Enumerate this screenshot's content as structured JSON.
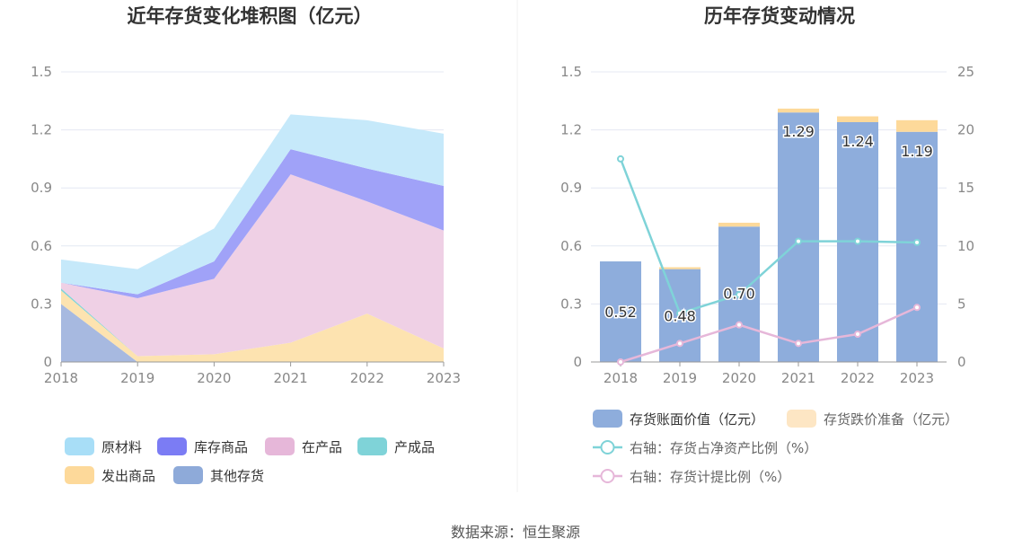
{
  "footer": {
    "source": "数据来源：恒生聚源"
  },
  "chart_data": [
    {
      "type": "area",
      "title": "近年存货变化堆积图（亿元）",
      "x": [
        "2018",
        "2019",
        "2020",
        "2021",
        "2022",
        "2023"
      ],
      "y_ticks": [
        "0",
        "0.3",
        "0.6",
        "0.9",
        "1.2",
        "1.5"
      ],
      "ylim": [
        0,
        1.5
      ],
      "stacked": true,
      "series": [
        {
          "name": "其他存货",
          "color": "#a7b9e0",
          "values": [
            0.3,
            0.0,
            0.0,
            0.0,
            0.0,
            0.0
          ]
        },
        {
          "name": "发出商品",
          "color": "#fde3b0",
          "values": [
            0.07,
            0.03,
            0.04,
            0.1,
            0.25,
            0.07
          ]
        },
        {
          "name": "产成品",
          "color": "#7fd3d8",
          "values": [
            0.01,
            0.0,
            0.0,
            0.0,
            0.0,
            0.0
          ]
        },
        {
          "name": "在产品",
          "color": "#efd0e5",
          "values": [
            0.03,
            0.3,
            0.39,
            0.87,
            0.58,
            0.61
          ]
        },
        {
          "name": "库存商品",
          "color": "#a0a2f8",
          "values": [
            0.0,
            0.02,
            0.09,
            0.13,
            0.17,
            0.23
          ]
        },
        {
          "name": "原材料",
          "color": "#c6e9fa",
          "values": [
            0.12,
            0.13,
            0.17,
            0.18,
            0.25,
            0.27
          ]
        }
      ],
      "legend": [
        {
          "name": "原材料",
          "color": "#a8def7"
        },
        {
          "name": "库存商品",
          "color": "#7b7cf4"
        },
        {
          "name": "在产品",
          "color": "#e6b7d9"
        },
        {
          "name": "产成品",
          "color": "#7fd3d8"
        },
        {
          "name": "发出商品",
          "color": "#fdd99a"
        },
        {
          "name": "其他存货",
          "color": "#8eaad9"
        }
      ],
      "legend_position": "bottom"
    },
    {
      "type": "bar",
      "title": "历年存货变动情况",
      "categories": [
        "2018",
        "2019",
        "2020",
        "2021",
        "2022",
        "2023"
      ],
      "y_ticks_left": [
        "0",
        "0.3",
        "0.6",
        "0.9",
        "1.2",
        "1.5"
      ],
      "y_ticks_right": [
        "0",
        "5",
        "10",
        "15",
        "20",
        "25"
      ],
      "ylim_left": [
        0,
        1.5
      ],
      "ylim_right": [
        0,
        25
      ],
      "series": [
        {
          "name": "存货账面价值（亿元）",
          "kind": "bar",
          "axis": "left",
          "color": "#8eaddc",
          "values": [
            0.52,
            0.48,
            0.7,
            1.29,
            1.24,
            1.19
          ],
          "labels": [
            "0.52",
            "0.48",
            "0.70",
            "1.29",
            "1.24",
            "1.19"
          ]
        },
        {
          "name": "存货跌价准备（亿元）",
          "kind": "bar-stack",
          "axis": "left",
          "color": "#fdd99a",
          "values": [
            0.0,
            0.01,
            0.02,
            0.02,
            0.03,
            0.06
          ]
        },
        {
          "name": "右轴：存货占净资产比例（%）",
          "kind": "line",
          "axis": "right",
          "color": "#7fd3d8",
          "values": [
            17.5,
            4.2,
            5.8,
            10.4,
            10.4,
            10.3
          ]
        },
        {
          "name": "右轴：存货计提比例（%）",
          "kind": "line",
          "axis": "right",
          "color": "#e6b7d9",
          "values": [
            0.0,
            1.6,
            3.2,
            1.6,
            2.4,
            4.7
          ]
        }
      ],
      "legend": [
        {
          "name": "存货账面价值（亿元）",
          "color": "#8eaddc",
          "shape": "rect"
        },
        {
          "name": "存货跌价准备（亿元）",
          "color": "#fde6c4",
          "shape": "rect"
        },
        {
          "name": "右轴：存货占净资产比例（%）",
          "color": "#7fd3d8",
          "shape": "line"
        },
        {
          "name": "右轴：存货计提比例（%）",
          "color": "#e6b7d9",
          "shape": "line"
        }
      ],
      "legend_position": "bottom"
    }
  ]
}
